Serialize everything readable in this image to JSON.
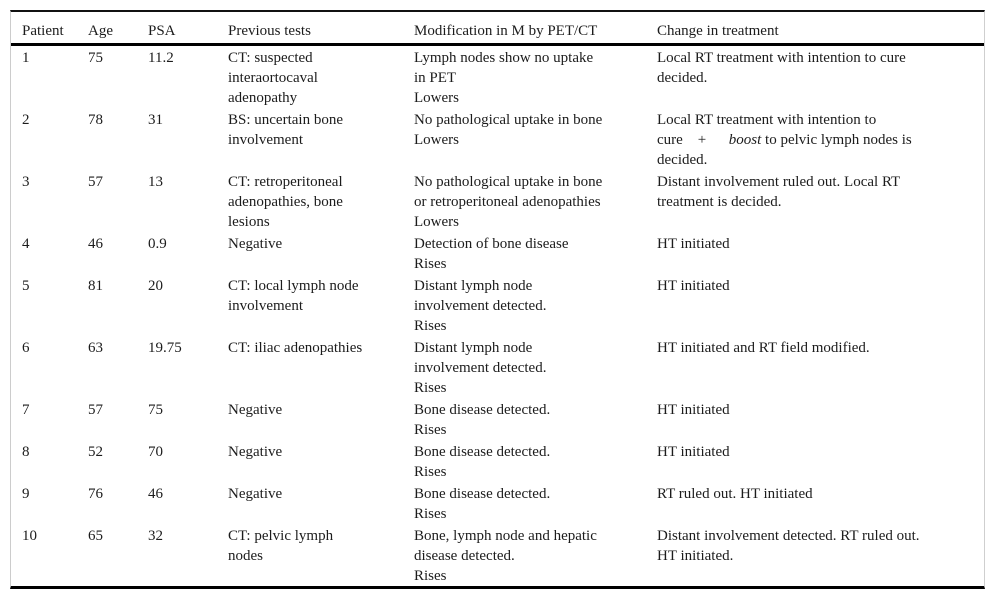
{
  "colors": {
    "text": "#1c1c1c",
    "rule": "#000000",
    "frame_side": "#cccccc",
    "background": "#ffffff"
  },
  "table": {
    "columns": [
      {
        "key": "patient",
        "label": "Patient"
      },
      {
        "key": "age",
        "label": "Age"
      },
      {
        "key": "psa",
        "label": "PSA"
      },
      {
        "key": "previous_tests",
        "label": "Previous tests"
      },
      {
        "key": "modification",
        "label": "Modification in M by PET/CT"
      },
      {
        "key": "treatment",
        "label": "Change in treatment"
      }
    ],
    "rows": [
      {
        "patient": "1",
        "age": "75",
        "psa": "11.2",
        "previous_tests": [
          "CT: suspected",
          "interaortocaval",
          "adenopathy"
        ],
        "modification": [
          "Lymph nodes show no uptake",
          "in PET",
          "Lowers"
        ],
        "treatment": [
          "Local RT treatment with intention to cure",
          "decided."
        ]
      },
      {
        "patient": "2",
        "age": "78",
        "psa": "31",
        "previous_tests": [
          "BS: uncertain bone",
          "involvement"
        ],
        "modification": [
          "No pathological uptake in bone",
          "Lowers"
        ],
        "treatment": [
          "Local RT treatment with intention to",
          [
            {
              "t": "cure    +      "
            },
            {
              "t": "boost",
              "italic": true
            },
            {
              "t": " to pelvic lymph nodes is"
            }
          ],
          "decided."
        ]
      },
      {
        "patient": "3",
        "age": "57",
        "psa": "13",
        "previous_tests": [
          "CT: retroperitoneal",
          "adenopathies, bone",
          "lesions"
        ],
        "modification": [
          "No pathological uptake in bone",
          "or retroperitoneal adenopathies",
          "Lowers"
        ],
        "treatment": [
          "Distant involvement ruled out. Local RT",
          "treatment is decided."
        ]
      },
      {
        "patient": "4",
        "age": "46",
        "psa": "0.9",
        "previous_tests": [
          "Negative"
        ],
        "modification": [
          "Detection of bone disease",
          "Rises"
        ],
        "treatment": [
          "HT initiated"
        ]
      },
      {
        "patient": "5",
        "age": "81",
        "psa": "20",
        "previous_tests": [
          "CT: local lymph node",
          "involvement"
        ],
        "modification": [
          "Distant lymph node",
          "involvement detected.",
          "Rises"
        ],
        "treatment": [
          "HT initiated"
        ]
      },
      {
        "patient": "6",
        "age": "63",
        "psa": "19.75",
        "previous_tests": [
          "CT: iliac adenopathies"
        ],
        "modification": [
          "Distant lymph node",
          "involvement detected.",
          "Rises"
        ],
        "treatment": [
          "HT initiated and RT field modified."
        ]
      },
      {
        "patient": "7",
        "age": "57",
        "psa": "75",
        "previous_tests": [
          "Negative"
        ],
        "modification": [
          "Bone disease detected.",
          "Rises"
        ],
        "treatment": [
          "HT initiated"
        ]
      },
      {
        "patient": "8",
        "age": "52",
        "psa": "70",
        "previous_tests": [
          "Negative"
        ],
        "modification": [
          "Bone disease detected.",
          "Rises"
        ],
        "treatment": [
          "HT initiated"
        ]
      },
      {
        "patient": "9",
        "age": "76",
        "psa": "46",
        "previous_tests": [
          "Negative"
        ],
        "modification": [
          "Bone disease detected.",
          "Rises"
        ],
        "treatment": [
          "RT ruled out. HT initiated"
        ]
      },
      {
        "patient": "10",
        "age": "65",
        "psa": "32",
        "previous_tests": [
          "CT: pelvic lymph",
          "nodes"
        ],
        "modification": [
          "Bone, lymph node and hepatic",
          "disease detected.",
          "Rises"
        ],
        "treatment": [
          "Distant involvement detected. RT ruled out.",
          "HT initiated."
        ]
      }
    ]
  }
}
